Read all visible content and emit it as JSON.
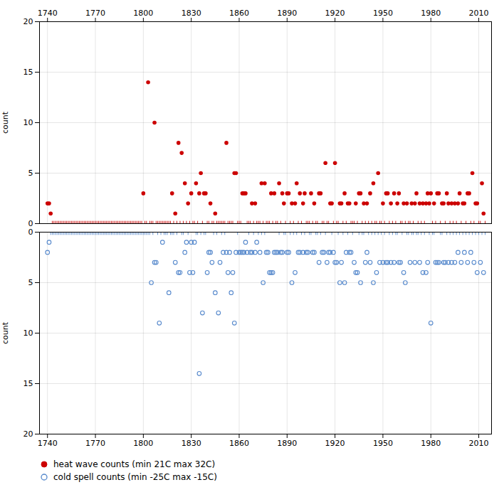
{
  "chart_data": [
    {
      "type": "scatter",
      "ylabel": "count",
      "xlim": [
        1735,
        2018
      ],
      "ylim": [
        0,
        20
      ],
      "xticks": [
        1740,
        1770,
        1800,
        1830,
        1860,
        1890,
        1920,
        1950,
        1980,
        2010
      ],
      "yticks": [
        0,
        5,
        10,
        15,
        20
      ],
      "grid": true,
      "series": [
        {
          "name": "heat wave counts (min 21C max 32C)",
          "color": "#cc0000",
          "marker": "circle",
          "x": [
            1740,
            1741,
            1742,
            1800,
            1803,
            1807,
            1818,
            1820,
            1822,
            1824,
            1826,
            1828,
            1830,
            1833,
            1835,
            1836,
            1838,
            1839,
            1842,
            1845,
            1852,
            1857,
            1858,
            1862,
            1863,
            1864,
            1868,
            1870,
            1874,
            1876,
            1880,
            1882,
            1885,
            1887,
            1888,
            1890,
            1891,
            1893,
            1895,
            1896,
            1898,
            1900,
            1901,
            1905,
            1907,
            1910,
            1911,
            1914,
            1917,
            1918,
            1920,
            1923,
            1924,
            1926,
            1928,
            1929,
            1933,
            1935,
            1936,
            1938,
            1940,
            1942,
            1944,
            1947,
            1950,
            1952,
            1953,
            1955,
            1957,
            1959,
            1960,
            1963,
            1965,
            1968,
            1970,
            1971,
            1973,
            1975,
            1977,
            1978,
            1979,
            1980,
            1982,
            1984,
            1985,
            1987,
            1988,
            1990,
            1991,
            1993,
            1995,
            1997,
            1998,
            2000,
            2001,
            2003,
            2004,
            2006,
            2008,
            2009,
            2012,
            2013
          ],
          "values": [
            2,
            2,
            1,
            3,
            14,
            10,
            3,
            1,
            8,
            7,
            4,
            2,
            3,
            4,
            3,
            5,
            3,
            3,
            2,
            1,
            8,
            5,
            5,
            3,
            3,
            3,
            2,
            2,
            4,
            4,
            3,
            3,
            4,
            3,
            2,
            3,
            3,
            2,
            2,
            4,
            3,
            2,
            3,
            3,
            2,
            3,
            3,
            6,
            2,
            2,
            6,
            2,
            2,
            3,
            2,
            2,
            2,
            3,
            3,
            2,
            2,
            3,
            4,
            5,
            2,
            3,
            3,
            2,
            3,
            2,
            3,
            2,
            2,
            2,
            2,
            3,
            2,
            2,
            2,
            3,
            2,
            3,
            2,
            3,
            3,
            2,
            2,
            3,
            2,
            2,
            2,
            2,
            3,
            2,
            2,
            3,
            3,
            5,
            2,
            2,
            4,
            1
          ]
        },
        {
          "color": "#cc0000",
          "marker": "plus",
          "x": [
            1743,
            1744,
            1745,
            1746,
            1747,
            1748,
            1749,
            1750,
            1751,
            1752,
            1753,
            1754,
            1755,
            1756,
            1757,
            1758,
            1759,
            1760,
            1761,
            1762,
            1763,
            1764,
            1765,
            1766,
            1767,
            1768,
            1769,
            1770,
            1771,
            1772,
            1773,
            1774,
            1775,
            1776,
            1777,
            1778,
            1779,
            1780,
            1781,
            1782,
            1783,
            1784,
            1785,
            1786,
            1787,
            1788,
            1789,
            1790,
            1791,
            1792,
            1793,
            1794,
            1795,
            1796,
            1797,
            1798,
            1799,
            1801,
            1802,
            1804,
            1805,
            1806,
            1808,
            1809,
            1810,
            1811,
            1812,
            1813,
            1814,
            1815,
            1816,
            1817,
            1819,
            1821,
            1823,
            1825,
            1827,
            1829,
            1831,
            1832,
            1834,
            1837,
            1840,
            1841,
            1843,
            1844,
            1846,
            1847,
            1848,
            1849,
            1850,
            1851,
            1853,
            1854,
            1855,
            1856,
            1859,
            1860,
            1861,
            1865,
            1866,
            1867,
            1869,
            1871,
            1872,
            1873,
            1875,
            1877,
            1878,
            1879,
            1881,
            1883,
            1884,
            1886,
            1889,
            1892,
            1894,
            1897,
            1899,
            1902,
            1903,
            1904,
            1906,
            1908,
            1909,
            1912,
            1913,
            1915,
            1916,
            1919,
            1921,
            1922,
            1925,
            1927,
            1930,
            1931,
            1932,
            1934,
            1937,
            1939,
            1941,
            1943,
            1945,
            1946,
            1948,
            1949,
            1951,
            1954,
            1956,
            1958,
            1961,
            1962,
            1964,
            1966,
            1967,
            1969,
            1972,
            1974,
            1976,
            1981,
            1983,
            1986,
            1989,
            1992,
            1994,
            1996,
            1999,
            2002,
            2005,
            2007,
            2010,
            2011,
            2014
          ],
          "values": [
            0,
            0,
            0,
            0,
            0,
            0,
            0,
            0,
            0,
            0,
            0,
            0,
            0,
            0,
            0,
            0,
            0,
            0,
            0,
            0,
            0,
            0,
            0,
            0,
            0,
            0,
            0,
            0,
            0,
            0,
            0,
            0,
            0,
            0,
            0,
            0,
            0,
            0,
            0,
            0,
            0,
            0,
            0,
            0,
            0,
            0,
            0,
            0,
            0,
            0,
            0,
            0,
            0,
            0,
            0,
            0,
            0,
            0,
            0,
            0,
            0,
            0,
            0,
            0,
            0,
            0,
            0,
            0,
            0,
            0,
            0,
            0,
            0,
            0,
            0,
            0,
            0,
            0,
            0,
            0,
            0,
            0,
            0,
            0,
            0,
            0,
            0,
            0,
            0,
            0,
            0,
            0,
            0,
            0,
            0,
            0,
            0,
            0,
            0,
            0,
            0,
            0,
            0,
            0,
            0,
            0,
            0,
            0,
            0,
            0,
            0,
            0,
            0,
            0,
            0,
            0,
            0,
            0,
            0,
            0,
            0,
            0,
            0,
            0,
            0,
            0,
            0,
            0,
            0,
            0,
            0,
            0,
            0,
            0,
            0,
            0,
            0,
            0,
            0,
            0,
            0,
            0,
            0,
            0,
            0,
            0,
            0,
            0,
            0,
            0,
            0,
            0,
            0,
            0,
            0,
            0,
            0,
            0,
            0,
            0,
            0,
            0,
            0,
            0,
            0,
            0,
            0,
            0,
            0,
            0,
            0,
            0,
            0
          ]
        }
      ]
    },
    {
      "type": "scatter",
      "ylabel": "count",
      "xlim": [
        1735,
        2018
      ],
      "ylim": [
        20,
        0
      ],
      "xticks": [
        1740,
        1770,
        1800,
        1830,
        1860,
        1890,
        1920,
        1950,
        1980,
        2010
      ],
      "yticks": [
        0,
        5,
        10,
        15,
        20
      ],
      "grid": true,
      "legend": "lower left",
      "series": [
        {
          "name": "cold spell counts (min -25C max -15C)",
          "color": "#5588cc",
          "marker": "open circle",
          "x": [
            1740,
            1741,
            1805,
            1807,
            1808,
            1810,
            1812,
            1816,
            1820,
            1822,
            1823,
            1826,
            1827,
            1829,
            1830,
            1831,
            1832,
            1835,
            1837,
            1840,
            1841,
            1842,
            1843,
            1845,
            1847,
            1848,
            1850,
            1852,
            1853,
            1854,
            1855,
            1856,
            1857,
            1858,
            1860,
            1861,
            1862,
            1863,
            1864,
            1865,
            1867,
            1868,
            1870,
            1871,
            1873,
            1875,
            1877,
            1878,
            1879,
            1880,
            1881,
            1882,
            1883,
            1884,
            1886,
            1887,
            1890,
            1891,
            1893,
            1895,
            1897,
            1898,
            1900,
            1902,
            1903,
            1906,
            1907,
            1910,
            1912,
            1913,
            1915,
            1916,
            1917,
            1919,
            1920,
            1921,
            1923,
            1924,
            1926,
            1927,
            1929,
            1930,
            1932,
            1933,
            1934,
            1936,
            1939,
            1940,
            1942,
            1944,
            1946,
            1948,
            1950,
            1952,
            1953,
            1955,
            1957,
            1960,
            1961,
            1963,
            1964,
            1967,
            1970,
            1973,
            1975,
            1977,
            1978,
            1980,
            1983,
            1984,
            1985,
            1988,
            1989,
            1991,
            1993,
            1995,
            1997,
            1999,
            2001,
            2003,
            2005,
            2007,
            2009,
            2011,
            2013
          ],
          "values": [
            2,
            1,
            5,
            3,
            3,
            9,
            1,
            6,
            3,
            4,
            4,
            2,
            1,
            4,
            1,
            4,
            1,
            14,
            8,
            4,
            2,
            2,
            3,
            6,
            8,
            3,
            2,
            2,
            4,
            2,
            6,
            4,
            9,
            2,
            2,
            2,
            2,
            2,
            1,
            2,
            2,
            2,
            2,
            1,
            2,
            5,
            2,
            2,
            4,
            4,
            4,
            2,
            2,
            2,
            2,
            2,
            2,
            2,
            5,
            4,
            2,
            2,
            2,
            2,
            2,
            2,
            2,
            3,
            2,
            2,
            3,
            2,
            2,
            2,
            3,
            3,
            5,
            3,
            5,
            2,
            2,
            2,
            3,
            4,
            4,
            5,
            3,
            2,
            3,
            5,
            4,
            3,
            3,
            3,
            3,
            3,
            3,
            3,
            3,
            4,
            5,
            3,
            3,
            3,
            4,
            4,
            3,
            9,
            3,
            3,
            3,
            3,
            3,
            3,
            3,
            3,
            2,
            3,
            2,
            3,
            2,
            3,
            4,
            3,
            4
          ]
        },
        {
          "color": "#5588cc",
          "marker": "plus",
          "x": [
            1742,
            1743,
            1744,
            1745,
            1746,
            1747,
            1748,
            1749,
            1750,
            1751,
            1752,
            1753,
            1754,
            1755,
            1756,
            1757,
            1758,
            1759,
            1760,
            1761,
            1762,
            1763,
            1764,
            1765,
            1766,
            1767,
            1768,
            1769,
            1770,
            1771,
            1772,
            1773,
            1774,
            1775,
            1776,
            1777,
            1778,
            1779,
            1780,
            1781,
            1782,
            1783,
            1784,
            1785,
            1786,
            1787,
            1788,
            1789,
            1790,
            1791,
            1792,
            1793,
            1794,
            1795,
            1796,
            1797,
            1798,
            1799,
            1800,
            1801,
            1802,
            1803,
            1804,
            1806,
            1809,
            1811,
            1813,
            1814,
            1815,
            1817,
            1818,
            1819,
            1821,
            1824,
            1825,
            1828,
            1833,
            1834,
            1836,
            1838,
            1839,
            1844,
            1846,
            1849,
            1851,
            1859,
            1866,
            1869,
            1872,
            1874,
            1876,
            1885,
            1888,
            1889,
            1892,
            1894,
            1896,
            1899,
            1901,
            1904,
            1905,
            1908,
            1909,
            1911,
            1914,
            1918,
            1922,
            1925,
            1928,
            1931,
            1935,
            1937,
            1938,
            1941,
            1943,
            1945,
            1947,
            1949,
            1951,
            1954,
            1956,
            1958,
            1959,
            1962,
            1965,
            1966,
            1968,
            1969,
            1971,
            1972,
            1974,
            1976,
            1979,
            1981,
            1982,
            1986,
            1987,
            1990,
            1992,
            1994,
            1996,
            1998,
            2000,
            2002,
            2004,
            2006,
            2008,
            2010,
            2012,
            2014
          ],
          "values": [
            0,
            0,
            0,
            0,
            0,
            0,
            0,
            0,
            0,
            0,
            0,
            0,
            0,
            0,
            0,
            0,
            0,
            0,
            0,
            0,
            0,
            0,
            0,
            0,
            0,
            0,
            0,
            0,
            0,
            0,
            0,
            0,
            0,
            0,
            0,
            0,
            0,
            0,
            0,
            0,
            0,
            0,
            0,
            0,
            0,
            0,
            0,
            0,
            0,
            0,
            0,
            0,
            0,
            0,
            0,
            0,
            0,
            0,
            0,
            0,
            0,
            0,
            0,
            0,
            0,
            0,
            0,
            0,
            0,
            0,
            0,
            0,
            0,
            0,
            0,
            0,
            0,
            0,
            0,
            0,
            0,
            0,
            0,
            0,
            0,
            0,
            0,
            0,
            0,
            0,
            0,
            0,
            0,
            0,
            0,
            0,
            0,
            0,
            0,
            0,
            0,
            0,
            0,
            0,
            0,
            0,
            0,
            0,
            0,
            0,
            0,
            0,
            0,
            0,
            0,
            0,
            0,
            0,
            0,
            0,
            0,
            0,
            0,
            0,
            0,
            0,
            0,
            0,
            0,
            0,
            0,
            0,
            0,
            0,
            0,
            0,
            0,
            0,
            0,
            0,
            0,
            0,
            0,
            0,
            0,
            0,
            0,
            0,
            0,
            0
          ]
        }
      ]
    }
  ]
}
